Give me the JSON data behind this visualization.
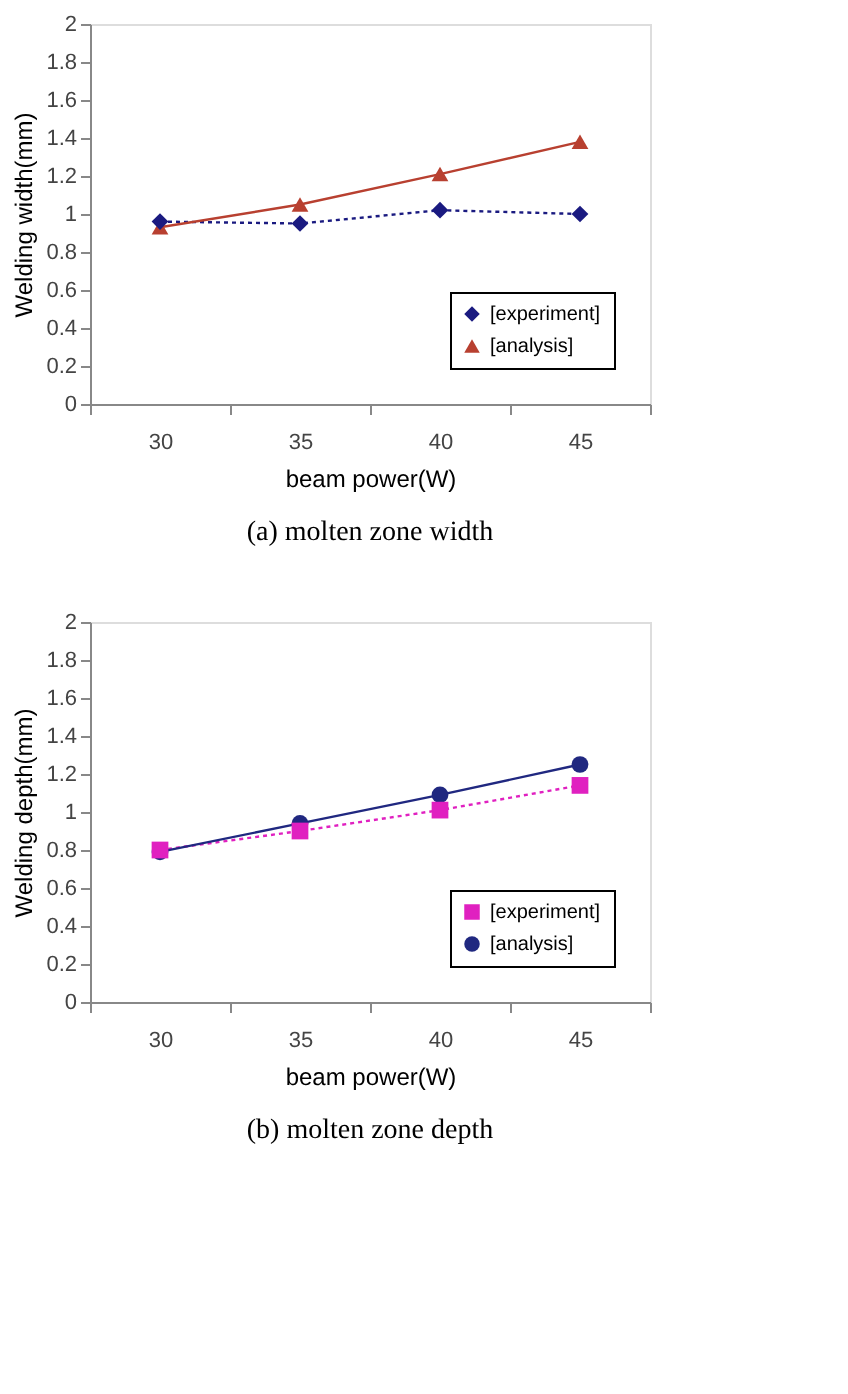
{
  "chart_data": [
    {
      "type": "line",
      "title": "(a) molten zone width",
      "xlabel": "beam power(W)",
      "ylabel": "Welding width(mm)",
      "categories": [
        "30",
        "35",
        "40",
        "45"
      ],
      "ylim": [
        0,
        2
      ],
      "yticks": [
        0,
        0.2,
        0.4,
        0.6,
        0.8,
        1,
        1.2,
        1.4,
        1.6,
        1.8,
        2
      ],
      "grid": false,
      "legend": "bottom right",
      "series": [
        {
          "name": "[experiment]",
          "color": "#1a1a80",
          "values": [
            0.96,
            0.95,
            1.02,
            1.0
          ],
          "marker": "diamond",
          "line_style": "dotted"
        },
        {
          "name": "[analysis]",
          "color": "#b84030",
          "values": [
            0.93,
            1.05,
            1.21,
            1.38
          ],
          "marker": "triangle",
          "line_style": "solid"
        }
      ]
    },
    {
      "type": "line",
      "title": "(b) molten zone depth",
      "xlabel": "beam power(W)",
      "ylabel": "Welding depth(mm)",
      "categories": [
        "30",
        "35",
        "40",
        "45"
      ],
      "ylim": [
        0,
        2
      ],
      "yticks": [
        0,
        0.2,
        0.4,
        0.6,
        0.8,
        1,
        1.2,
        1.4,
        1.6,
        1.8,
        2
      ],
      "grid": false,
      "legend": "bottom right",
      "series": [
        {
          "name": "[experiment]",
          "color": "#e020c0",
          "values": [
            0.8,
            0.9,
            1.01,
            1.14
          ],
          "marker": "square",
          "line_style": "dotted"
        },
        {
          "name": "[analysis]",
          "color": "#202880",
          "values": [
            0.79,
            0.94,
            1.09,
            1.25
          ],
          "marker": "circle",
          "line_style": "solid"
        }
      ]
    }
  ]
}
